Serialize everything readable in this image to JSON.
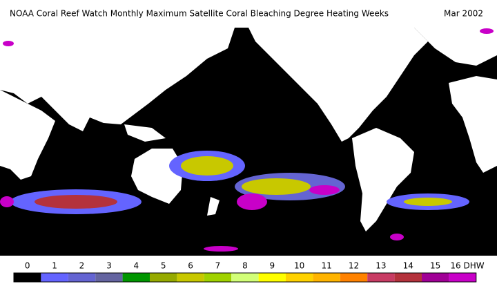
{
  "header": {
    "title": "NOAA Coral Reef Watch Monthly Maximum Satellite Coral Bleaching Degree Heating Weeks",
    "date": "Mar 2002"
  },
  "legend": {
    "items": [
      {
        "label": "0",
        "color": "#000000"
      },
      {
        "label": "1",
        "color": "#6464ff"
      },
      {
        "label": "2",
        "color": "#6464d2"
      },
      {
        "label": "3",
        "color": "#6464a0"
      },
      {
        "label": "4",
        "color": "#009600"
      },
      {
        "label": "5",
        "color": "#96aa00"
      },
      {
        "label": "6",
        "color": "#c8c800"
      },
      {
        "label": "7",
        "color": "#a0d200"
      },
      {
        "label": "8",
        "color": "#d2ff78"
      },
      {
        "label": "9",
        "color": "#ffff00"
      },
      {
        "label": "10",
        "color": "#ffd200"
      },
      {
        "label": "11",
        "color": "#ffb400"
      },
      {
        "label": "12",
        "color": "#ff8200"
      },
      {
        "label": "13",
        "color": "#c83c64"
      },
      {
        "label": "14",
        "color": "#b4323c"
      },
      {
        "label": "15",
        "color": "#a00096"
      },
      {
        "label": "16 DHW",
        "color": "#c800c8"
      }
    ]
  }
}
